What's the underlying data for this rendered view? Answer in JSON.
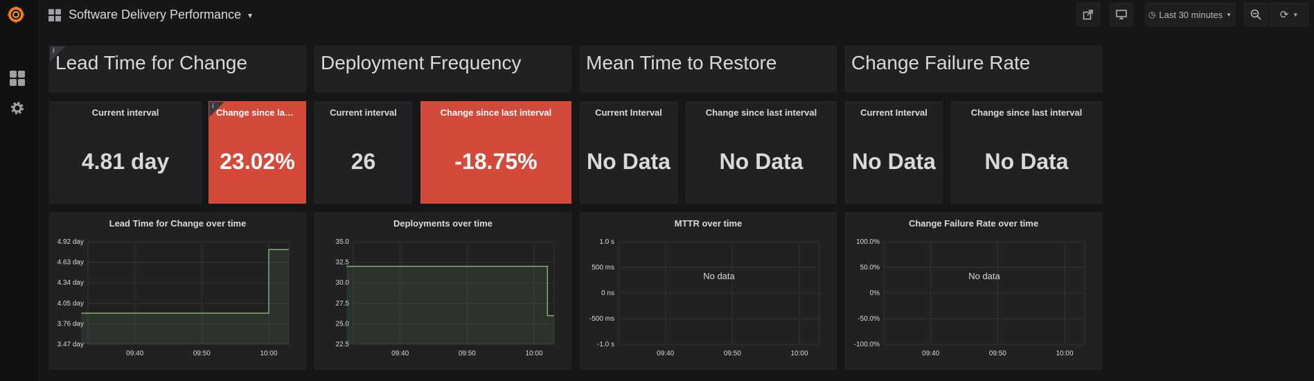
{
  "dashboard": {
    "title": "Software Delivery Performance"
  },
  "toolbar": {
    "time_range": "Last 30 minutes"
  },
  "sections": [
    {
      "title": "Lead Time for Change"
    },
    {
      "title": "Deployment Frequency"
    },
    {
      "title": "Mean Time to Restore"
    },
    {
      "title": "Change Failure Rate"
    }
  ],
  "stats": [
    {
      "label": "Current interval",
      "value": "4.81 day",
      "color": "#212124"
    },
    {
      "label": "Change since last interval",
      "value": "23.02%",
      "color": "#d44a3a"
    },
    {
      "label": "Current interval",
      "value": "26",
      "color": "#212124"
    },
    {
      "label": "Change since last interval",
      "value": "-18.75%",
      "color": "#d44a3a"
    },
    {
      "label": "Current Interval",
      "value": "No Data",
      "color": "#212124"
    },
    {
      "label": "Change since last interval",
      "value": "No Data",
      "color": "#212124"
    },
    {
      "label": "Current Interval",
      "value": "No Data",
      "color": "#212124"
    },
    {
      "label": "Change since last interval",
      "value": "No Data",
      "color": "#212124"
    }
  ],
  "graphs": [
    {
      "title": "Lead Time for Change over time"
    },
    {
      "title": "Deployments over time"
    },
    {
      "title": "MTTR over time",
      "no_data": "No data"
    },
    {
      "title": "Change Failure Rate over time",
      "no_data": "No data"
    }
  ],
  "chart_data": [
    {
      "type": "line",
      "title": "Lead Time for Change over time",
      "x_ticks": [
        "09:40",
        "09:50",
        "10:00"
      ],
      "y_ticks": [
        "4.92 day",
        "4.63 day",
        "4.34 day",
        "4.05 day",
        "3.76 day",
        "3.47 day"
      ],
      "ylim": [
        3.47,
        4.92
      ],
      "series": [
        {
          "x": [
            "09:32",
            "10:00",
            "10:00",
            "10:03"
          ],
          "y": [
            3.91,
            3.91,
            4.81,
            4.81
          ]
        }
      ],
      "color": "#7eb26d"
    },
    {
      "type": "line",
      "title": "Deployments over time",
      "x_ticks": [
        "09:40",
        "09:50",
        "10:00"
      ],
      "y_ticks": [
        "35.0",
        "32.5",
        "30.0",
        "27.5",
        "25.0",
        "22.5"
      ],
      "ylim": [
        22.5,
        35.0
      ],
      "series": [
        {
          "x": [
            "09:32",
            "10:02",
            "10:02",
            "10:03"
          ],
          "y": [
            32,
            32,
            26,
            26
          ]
        }
      ],
      "color": "#7eb26d"
    },
    {
      "type": "line",
      "title": "MTTR over time",
      "x_ticks": [
        "09:40",
        "09:50",
        "10:00"
      ],
      "y_ticks": [
        "1.0 s",
        "500 ms",
        "0 ns",
        "-500 ms",
        "-1.0 s"
      ],
      "series": []
    },
    {
      "type": "line",
      "title": "Change Failure Rate over time",
      "x_ticks": [
        "09:40",
        "09:50",
        "10:00"
      ],
      "y_ticks": [
        "100.0%",
        "50.0%",
        "0%",
        "-50.0%",
        "-100.0%"
      ],
      "series": []
    }
  ]
}
